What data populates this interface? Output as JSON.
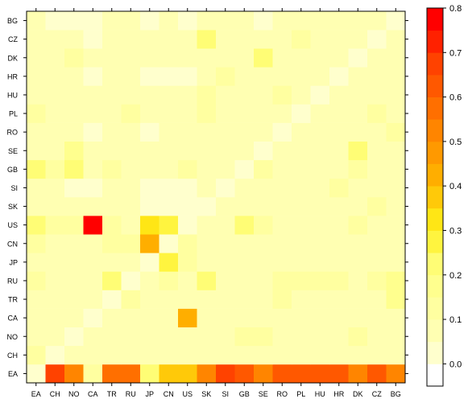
{
  "chart_data": {
    "type": "heatmap",
    "x_categories": [
      "EA",
      "CH",
      "NO",
      "CA",
      "TR",
      "RU",
      "JP",
      "CN",
      "US",
      "SK",
      "SI",
      "GB",
      "SE",
      "RO",
      "PL",
      "HU",
      "HR",
      "DK",
      "CZ",
      "BG"
    ],
    "y_categories": [
      "EA",
      "CH",
      "NO",
      "CA",
      "TR",
      "RU",
      "JP",
      "CN",
      "US",
      "SK",
      "SI",
      "GB",
      "SE",
      "RO",
      "PL",
      "HU",
      "HR",
      "DK",
      "CZ",
      "BG"
    ],
    "values": [
      [
        0.0,
        0.65,
        0.52,
        0.13,
        0.58,
        0.58,
        0.25,
        0.38,
        0.38,
        0.52,
        0.68,
        0.62,
        0.52,
        0.62,
        0.62,
        0.62,
        0.62,
        0.52,
        0.62,
        0.52
      ],
      [
        0.1,
        0.0,
        0.05,
        0.05,
        0.05,
        0.05,
        0.05,
        0.05,
        0.05,
        0.05,
        0.05,
        0.05,
        0.05,
        0.05,
        0.05,
        0.05,
        0.05,
        0.05,
        0.05,
        0.05
      ],
      [
        0.05,
        0.05,
        0.0,
        0.05,
        0.05,
        0.05,
        0.05,
        0.05,
        0.05,
        0.05,
        0.05,
        0.1,
        0.1,
        0.05,
        0.05,
        0.05,
        0.05,
        0.1,
        0.05,
        0.05
      ],
      [
        0.05,
        0.05,
        0.05,
        0.0,
        0.05,
        0.05,
        0.05,
        0.05,
        0.42,
        0.05,
        0.05,
        0.05,
        0.05,
        0.05,
        0.05,
        0.05,
        0.05,
        0.05,
        0.05,
        0.05
      ],
      [
        0.05,
        0.05,
        0.05,
        0.05,
        0.0,
        0.1,
        0.05,
        0.05,
        0.05,
        0.05,
        0.05,
        0.05,
        0.05,
        0.1,
        0.05,
        0.05,
        0.05,
        0.05,
        0.05,
        0.15
      ],
      [
        0.1,
        0.05,
        0.05,
        0.05,
        0.2,
        0.0,
        0.05,
        0.1,
        0.05,
        0.2,
        0.05,
        0.05,
        0.05,
        0.1,
        0.1,
        0.1,
        0.1,
        0.05,
        0.1,
        0.15
      ],
      [
        0.05,
        0.05,
        0.05,
        0.05,
        0.05,
        0.05,
        0.0,
        0.3,
        0.1,
        0.05,
        0.05,
        0.05,
        0.05,
        0.05,
        0.05,
        0.05,
        0.05,
        0.05,
        0.05,
        0.05
      ],
      [
        0.1,
        0.05,
        0.05,
        0.05,
        0.1,
        0.1,
        0.4,
        0.0,
        0.1,
        0.05,
        0.05,
        0.05,
        0.05,
        0.05,
        0.05,
        0.05,
        0.05,
        0.05,
        0.05,
        0.05
      ],
      [
        0.2,
        0.1,
        0.1,
        0.8,
        0.1,
        0.05,
        0.35,
        0.3,
        0.0,
        0.05,
        0.05,
        0.2,
        0.1,
        0.05,
        0.05,
        0.05,
        0.05,
        0.1,
        0.05,
        0.05
      ],
      [
        0.05,
        0.05,
        0.05,
        0.05,
        0.05,
        0.05,
        0.0,
        0.0,
        0.0,
        0.0,
        0.05,
        0.05,
        0.05,
        0.05,
        0.05,
        0.05,
        0.05,
        0.05,
        0.1,
        0.05
      ],
      [
        0.05,
        0.05,
        0.0,
        0.0,
        0.05,
        0.05,
        0.0,
        0.0,
        0.0,
        0.05,
        0.0,
        0.05,
        0.05,
        0.05,
        0.05,
        0.05,
        0.1,
        0.05,
        0.05,
        0.05
      ],
      [
        0.2,
        0.1,
        0.2,
        0.05,
        0.1,
        0.05,
        0.05,
        0.05,
        0.1,
        0.05,
        0.05,
        0.0,
        0.1,
        0.05,
        0.05,
        0.05,
        0.05,
        0.1,
        0.05,
        0.05
      ],
      [
        0.05,
        0.05,
        0.15,
        0.05,
        0.05,
        0.05,
        0.05,
        0.05,
        0.05,
        0.05,
        0.05,
        0.05,
        0.0,
        0.05,
        0.05,
        0.05,
        0.05,
        0.2,
        0.05,
        0.05
      ],
      [
        0.05,
        0.05,
        0.05,
        0.0,
        0.05,
        0.05,
        0.0,
        0.05,
        0.05,
        0.05,
        0.05,
        0.05,
        0.05,
        0.0,
        0.05,
        0.05,
        0.05,
        0.05,
        0.05,
        0.1
      ],
      [
        0.1,
        0.05,
        0.05,
        0.05,
        0.05,
        0.1,
        0.05,
        0.05,
        0.05,
        0.1,
        0.05,
        0.05,
        0.05,
        0.05,
        0.0,
        0.05,
        0.05,
        0.05,
        0.1,
        0.05
      ],
      [
        0.05,
        0.05,
        0.05,
        0.05,
        0.05,
        0.05,
        0.05,
        0.05,
        0.05,
        0.1,
        0.05,
        0.05,
        0.05,
        0.1,
        0.05,
        0.0,
        0.05,
        0.05,
        0.05,
        0.05
      ],
      [
        0.05,
        0.05,
        0.05,
        0.0,
        0.05,
        0.05,
        0.0,
        0.0,
        0.0,
        0.05,
        0.1,
        0.05,
        0.05,
        0.05,
        0.05,
        0.05,
        0.0,
        0.05,
        0.05,
        0.05
      ],
      [
        0.05,
        0.05,
        0.1,
        0.05,
        0.05,
        0.05,
        0.05,
        0.05,
        0.05,
        0.05,
        0.05,
        0.05,
        0.2,
        0.05,
        0.05,
        0.05,
        0.05,
        0.0,
        0.05,
        0.05
      ],
      [
        0.05,
        0.05,
        0.05,
        0.0,
        0.05,
        0.05,
        0.05,
        0.05,
        0.05,
        0.2,
        0.05,
        0.05,
        0.05,
        0.05,
        0.1,
        0.05,
        0.05,
        0.05,
        0.0,
        0.05
      ],
      [
        0.05,
        0.0,
        0.0,
        0.0,
        0.05,
        0.05,
        0.0,
        0.05,
        0.0,
        0.05,
        0.05,
        0.05,
        0.0,
        0.05,
        0.05,
        0.05,
        0.05,
        0.05,
        0.05,
        0.0
      ]
    ],
    "colorbar": {
      "min": -0.05,
      "max": 0.8,
      "steps": 17,
      "ticks": [
        0.0,
        0.1,
        0.2,
        0.3,
        0.4,
        0.5,
        0.6,
        0.7,
        0.8
      ],
      "tick_labels": [
        "0.0",
        "0.1",
        "0.2",
        "0.3",
        "0.4",
        "0.5",
        "0.6",
        "0.7",
        "0.8"
      ]
    },
    "palette": "heat (white-yellow-orange-red)",
    "title": "",
    "xlabel": "",
    "ylabel": "",
    "grid": false,
    "legend_placement": "right"
  }
}
